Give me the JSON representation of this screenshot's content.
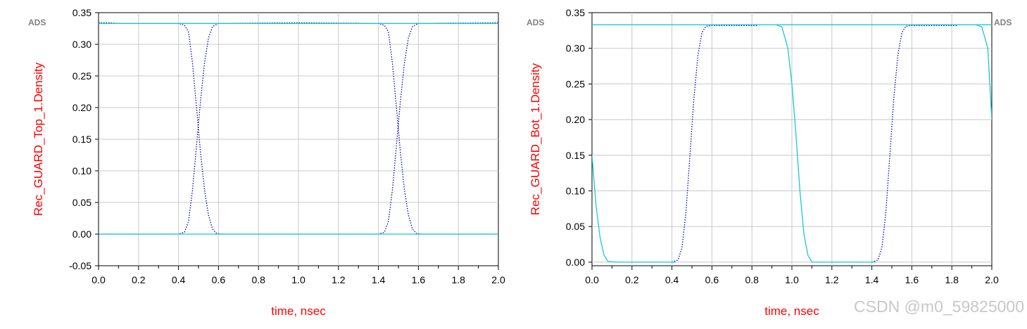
{
  "watermark": "CSDN @m0_59825000",
  "colors": {
    "axis_label": "#ff0000",
    "series_a": "#0000c8",
    "series_b": "#19c8d8",
    "grid": "#c8c8c8"
  },
  "chart_data": [
    {
      "type": "scatter",
      "title": "",
      "ads_label": "ADS",
      "xlabel": "time, nsec",
      "ylabel": "Rec_GUARD_Top_1.Density",
      "xlim": [
        0.0,
        2.0
      ],
      "ylim": [
        -0.05,
        0.35
      ],
      "xticks": [
        "0.0",
        "0.2",
        "0.4",
        "0.6",
        "0.8",
        "1.0",
        "1.2",
        "1.4",
        "1.6",
        "1.8",
        "2.0"
      ],
      "yticks": [
        "-0.05",
        "0.00",
        "0.05",
        "0.10",
        "0.15",
        "0.20",
        "0.25",
        "0.30",
        "0.35"
      ],
      "grid": true,
      "series": [
        {
          "color_key": "series_a",
          "segments": [
            [
              [
                0.0,
                0.334
              ],
              [
                0.05,
                0.334
              ],
              [
                0.1,
                0.333
              ],
              [
                0.3,
                0.333
              ],
              [
                0.4,
                0.333
              ],
              [
                0.43,
                0.33
              ],
              [
                0.45,
                0.32
              ],
              [
                0.47,
                0.27
              ],
              [
                0.49,
                0.2
              ],
              [
                0.51,
                0.13
              ],
              [
                0.53,
                0.07
              ],
              [
                0.55,
                0.03
              ],
              [
                0.57,
                0.008
              ],
              [
                0.59,
                0.001
              ],
              [
                0.62,
                0.0
              ],
              [
                0.8,
                0.0
              ],
              [
                1.0,
                0.0
              ],
              [
                1.4,
                0.0
              ],
              [
                1.43,
                0.003
              ],
              [
                1.45,
                0.02
              ],
              [
                1.47,
                0.07
              ],
              [
                1.49,
                0.14
              ],
              [
                1.51,
                0.21
              ],
              [
                1.53,
                0.27
              ],
              [
                1.55,
                0.31
              ],
              [
                1.57,
                0.328
              ],
              [
                1.6,
                0.333
              ],
              [
                2.0,
                0.334
              ]
            ],
            [
              [
                0.0,
                0.0
              ],
              [
                0.4,
                0.0
              ],
              [
                0.43,
                0.003
              ],
              [
                0.45,
                0.02
              ],
              [
                0.47,
                0.07
              ],
              [
                0.49,
                0.14
              ],
              [
                0.51,
                0.21
              ],
              [
                0.53,
                0.27
              ],
              [
                0.55,
                0.31
              ],
              [
                0.57,
                0.328
              ],
              [
                0.6,
                0.333
              ],
              [
                1.0,
                0.334
              ],
              [
                1.4,
                0.333
              ],
              [
                1.43,
                0.33
              ],
              [
                1.45,
                0.32
              ],
              [
                1.47,
                0.27
              ],
              [
                1.49,
                0.2
              ],
              [
                1.51,
                0.13
              ],
              [
                1.53,
                0.07
              ],
              [
                1.55,
                0.03
              ],
              [
                1.57,
                0.008
              ],
              [
                1.59,
                0.001
              ],
              [
                1.62,
                0.0
              ],
              [
                2.0,
                0.0
              ]
            ]
          ]
        },
        {
          "color_key": "series_b",
          "segments": [
            [
              [
                0.0,
                0.333
              ],
              [
                2.0,
                0.333
              ]
            ],
            [
              [
                0.0,
                0.0
              ],
              [
                2.0,
                0.0
              ]
            ]
          ]
        }
      ]
    },
    {
      "type": "scatter",
      "title": "",
      "ads_label": "ADS",
      "ads_label_right": "ADS",
      "xlabel": "time, nsec",
      "ylabel": "Rec_GUARD_Bot_1.Density",
      "xlim": [
        0.0,
        2.0
      ],
      "ylim": [
        -0.005,
        0.35
      ],
      "xticks": [
        "0.0",
        "0.2",
        "0.4",
        "0.6",
        "0.8",
        "1.0",
        "1.2",
        "1.4",
        "1.6",
        "1.8",
        "2.0"
      ],
      "yticks": [
        "0.00",
        "0.05",
        "0.10",
        "0.15",
        "0.20",
        "0.25",
        "0.30",
        "0.35"
      ],
      "grid": true,
      "series": [
        {
          "color_key": "series_a",
          "segments": [
            [
              [
                0.4,
                0.0
              ],
              [
                0.43,
                0.003
              ],
              [
                0.45,
                0.02
              ],
              [
                0.47,
                0.07
              ],
              [
                0.49,
                0.15
              ],
              [
                0.51,
                0.23
              ],
              [
                0.53,
                0.29
              ],
              [
                0.55,
                0.322
              ],
              [
                0.57,
                0.331
              ],
              [
                0.6,
                0.332
              ],
              [
                0.83,
                0.332
              ]
            ],
            [
              [
                1.4,
                0.0
              ],
              [
                1.43,
                0.003
              ],
              [
                1.45,
                0.02
              ],
              [
                1.47,
                0.07
              ],
              [
                1.49,
                0.15
              ],
              [
                1.51,
                0.23
              ],
              [
                1.53,
                0.29
              ],
              [
                1.55,
                0.322
              ],
              [
                1.57,
                0.331
              ],
              [
                1.6,
                0.332
              ],
              [
                1.83,
                0.332
              ]
            ]
          ]
        },
        {
          "color_key": "series_b",
          "segments": [
            [
              [
                0.0,
                0.333
              ],
              [
                2.0,
                0.333
              ]
            ],
            [
              [
                0.0,
                0.15
              ],
              [
                0.02,
                0.08
              ],
              [
                0.04,
                0.035
              ],
              [
                0.06,
                0.01
              ],
              [
                0.08,
                0.001
              ],
              [
                0.12,
                0.0
              ],
              [
                0.42,
                0.0
              ]
            ],
            [
              [
                0.92,
                0.333
              ],
              [
                0.95,
                0.33
              ],
              [
                0.98,
                0.3
              ],
              [
                1.0,
                0.25
              ],
              [
                1.02,
                0.18
              ],
              [
                1.04,
                0.1
              ],
              [
                1.06,
                0.04
              ],
              [
                1.08,
                0.01
              ],
              [
                1.1,
                0.0
              ],
              [
                1.42,
                0.0
              ]
            ],
            [
              [
                1.92,
                0.333
              ],
              [
                1.95,
                0.33
              ],
              [
                1.98,
                0.3
              ],
              [
                2.0,
                0.2
              ]
            ]
          ]
        }
      ]
    }
  ]
}
